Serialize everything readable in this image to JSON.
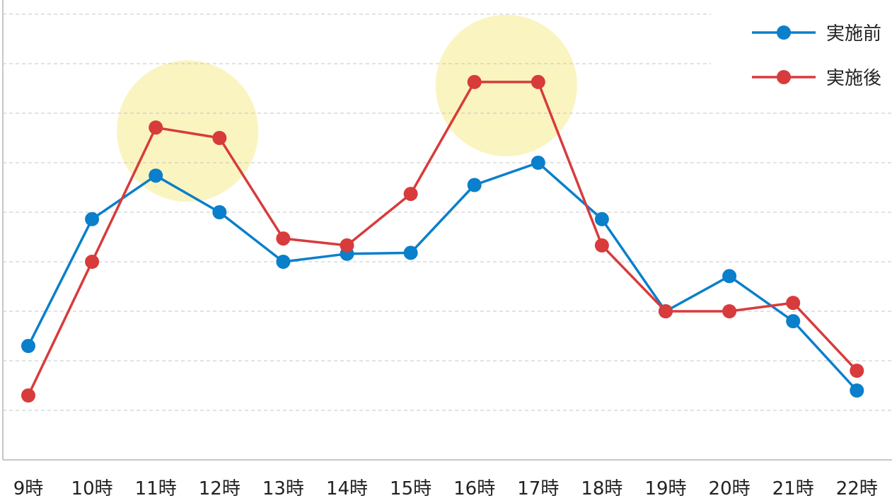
{
  "chart_data": {
    "type": "line",
    "categories": [
      "9時",
      "10時",
      "11時",
      "12時",
      "13時",
      "14時",
      "15時",
      "16時",
      "17時",
      "18時",
      "19時",
      "20時",
      "21時",
      "22時"
    ],
    "ylim": [
      0,
      9
    ],
    "grid": true,
    "legend": "top-right",
    "series": [
      {
        "name": "実施前",
        "color": "#0a7fcb",
        "values": [
          2.3,
          4.86,
          5.74,
          5.0,
          4.0,
          4.16,
          4.18,
          5.55,
          6.0,
          4.86,
          3.0,
          3.71,
          2.8,
          1.4
        ]
      },
      {
        "name": "実施後",
        "color": "#d83b3b",
        "values": [
          1.3,
          4.0,
          6.71,
          6.5,
          4.47,
          4.33,
          5.37,
          7.63,
          7.63,
          4.33,
          3.0,
          3.0,
          3.17,
          1.8
        ]
      }
    ],
    "highlights": [
      {
        "categories": [
          "11時",
          "12時"
        ],
        "color": "#faf4c0"
      },
      {
        "categories": [
          "16時",
          "17時"
        ],
        "color": "#faf4c0"
      }
    ]
  }
}
